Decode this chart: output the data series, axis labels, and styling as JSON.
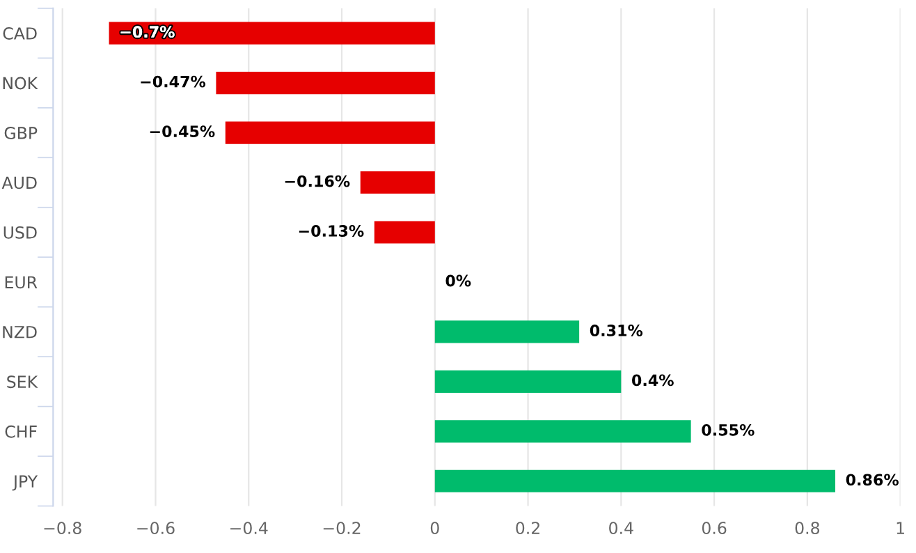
{
  "chart_data": {
    "type": "bar",
    "orientation": "horizontal",
    "categories": [
      "CAD",
      "NOK",
      "GBP",
      "AUD",
      "USD",
      "EUR",
      "NZD",
      "SEK",
      "CHF",
      "JPY"
    ],
    "values": [
      -0.7,
      -0.47,
      -0.45,
      -0.16,
      -0.13,
      0,
      0.31,
      0.4,
      0.55,
      0.86
    ],
    "value_labels": [
      "−0.7%",
      "−0.47%",
      "−0.45%",
      "−0.16%",
      "−0.13%",
      "0%",
      "0.31%",
      "0.4%",
      "0.55%",
      "0.86%"
    ],
    "colors": [
      "#e60000",
      "#e60000",
      "#e60000",
      "#e60000",
      "#e60000",
      "#00bb6c",
      "#00bb6c",
      "#00bb6c",
      "#00bb6c",
      "#00bb6c"
    ],
    "xlim": [
      -0.82,
      1
    ],
    "xticks": [
      -0.8,
      -0.6,
      -0.4,
      -0.2,
      0,
      0.2,
      0.4,
      0.6,
      0.8,
      1
    ],
    "grid": "x",
    "legend": false
  }
}
